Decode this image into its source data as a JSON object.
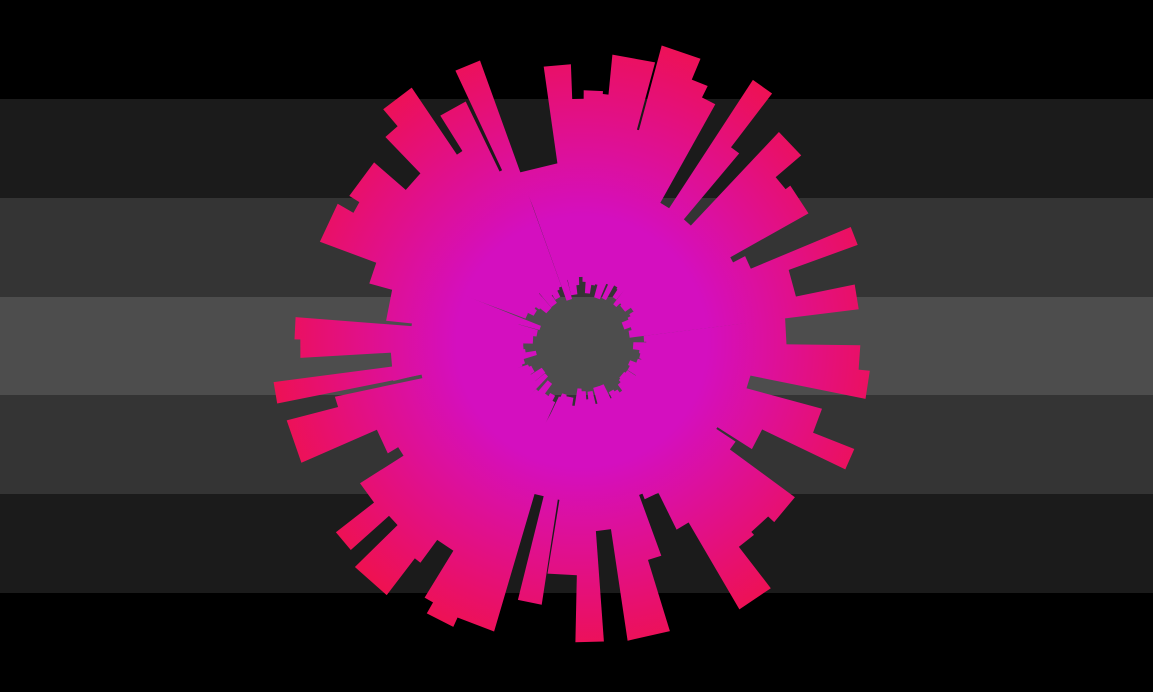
{
  "flag": {
    "stripes": [
      {
        "color": "#000000"
      },
      {
        "color": "#1b1b1b"
      },
      {
        "color": "#343434"
      },
      {
        "color": "#4d4d4d"
      },
      {
        "color": "#343434"
      },
      {
        "color": "#1b1b1b"
      },
      {
        "color": "#000000"
      }
    ]
  },
  "burst": {
    "inner_color": "#d40fbf",
    "outer_color": "#f0114a",
    "ray_count": 90
  }
}
